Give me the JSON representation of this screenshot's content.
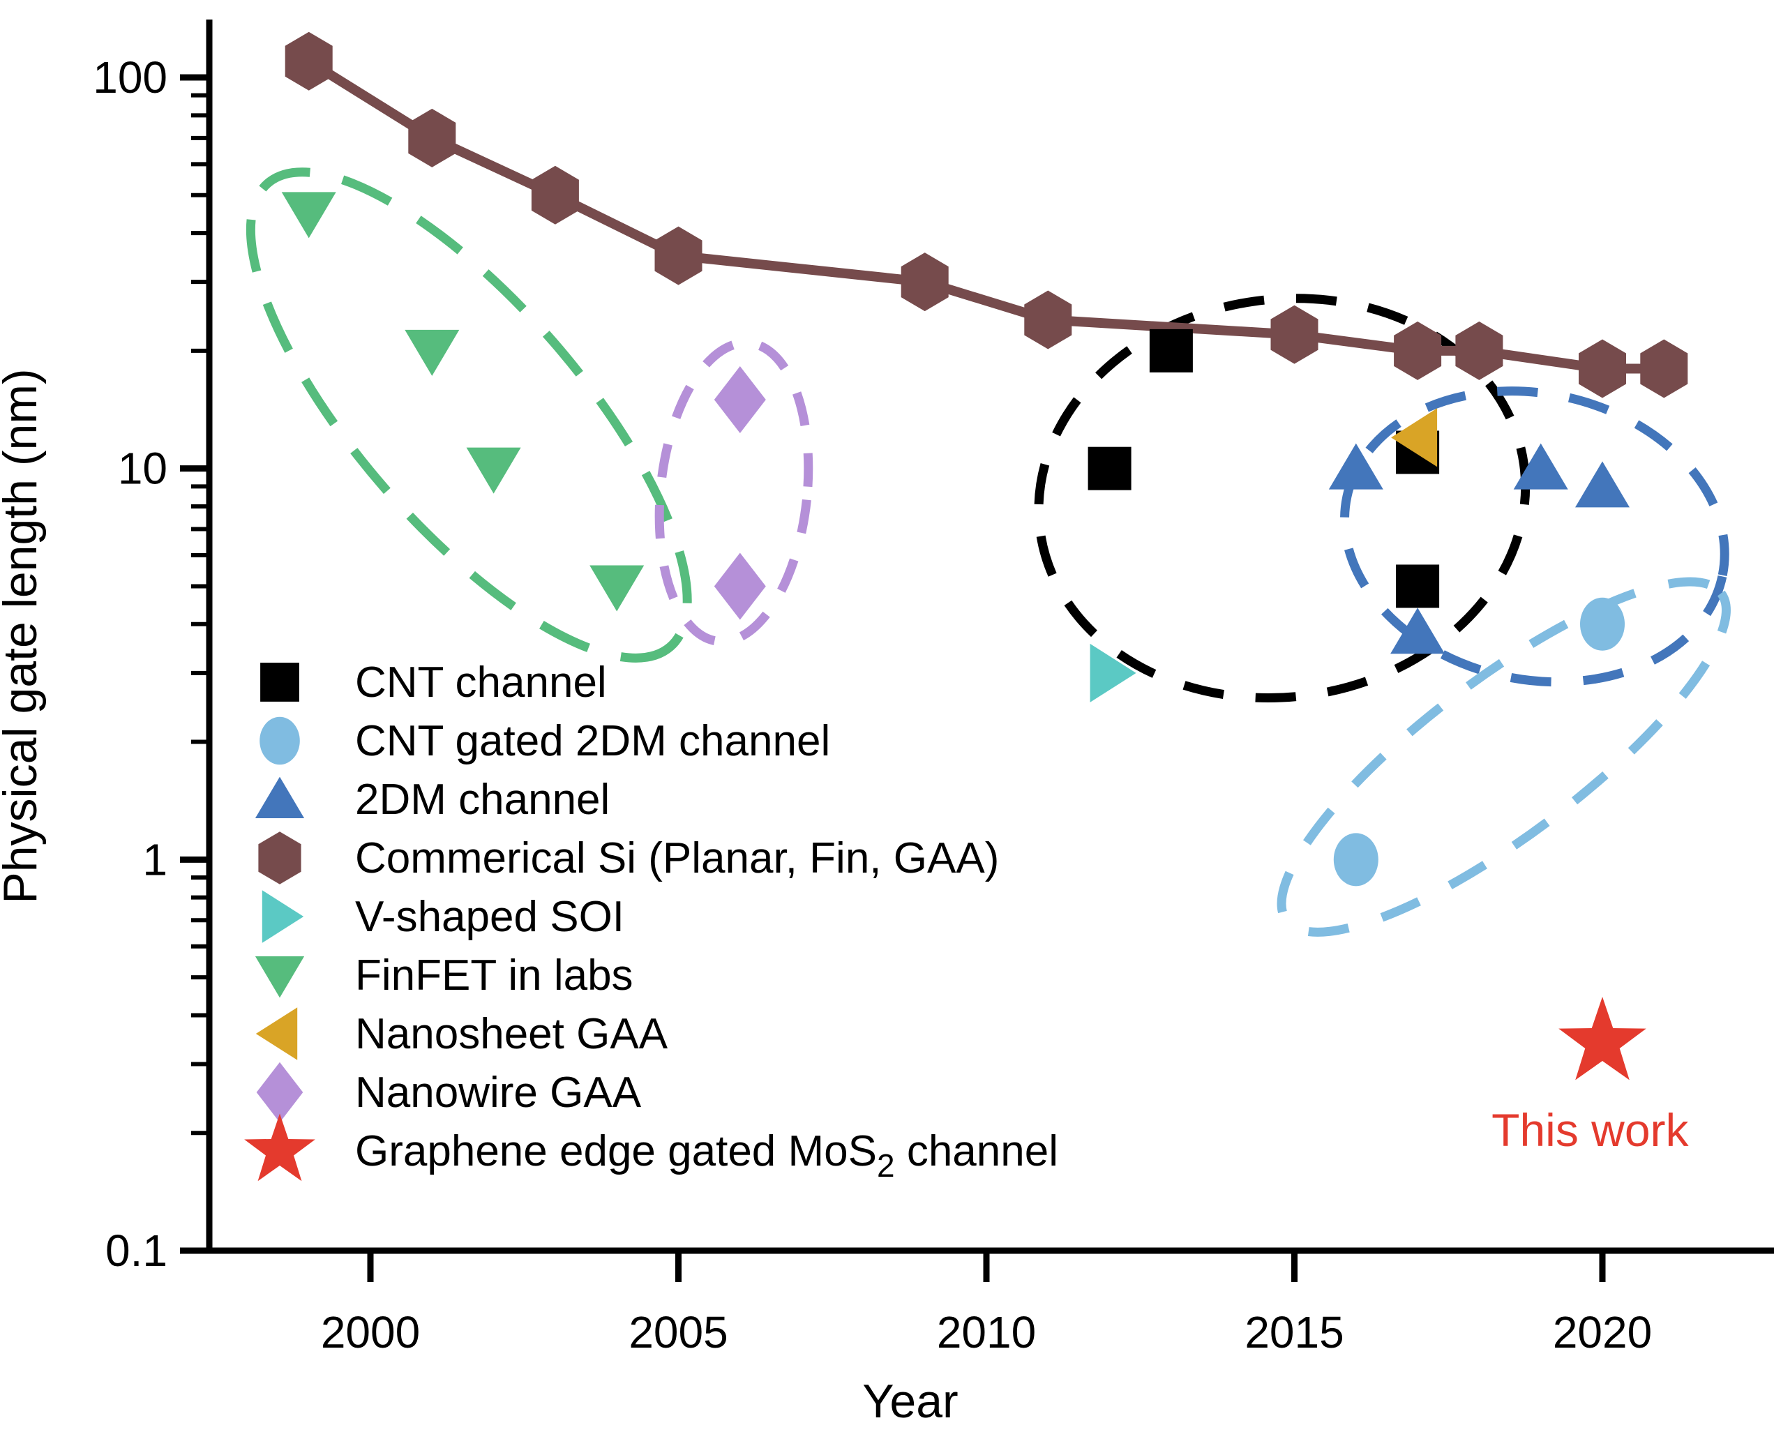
{
  "figure": {
    "ylabel": "Physical gate length (nm)",
    "xlabel": "Year"
  },
  "chart_data": {
    "type": "scatter",
    "title": "",
    "xlabel": "Year",
    "ylabel": "Physical gate length (nm)",
    "y_scale": "log",
    "xlim": [
      1997.4,
      2022.8
    ],
    "ylim": [
      0.1,
      140
    ],
    "x_ticks": [
      2000,
      2005,
      2010,
      2015,
      2020
    ],
    "y_ticks": [
      100,
      10,
      1,
      0.1
    ],
    "grid": false,
    "series": [
      {
        "name": "CNT channel",
        "marker": "square",
        "color": "#000000",
        "points": [
          [
            2012,
            10
          ],
          [
            2013,
            20
          ],
          [
            2017,
            11
          ],
          [
            2017,
            5
          ]
        ]
      },
      {
        "name": "CNT gated 2DM channel",
        "marker": "circle",
        "color": "#80BCE1",
        "points": [
          [
            2016,
            1
          ],
          [
            2020,
            4
          ]
        ]
      },
      {
        "name": "2DM channel",
        "marker": "triangle-up",
        "color": "#4376BB",
        "points": [
          [
            2016,
            10
          ],
          [
            2017,
            3.8
          ],
          [
            2019,
            10
          ],
          [
            2020,
            9
          ]
        ]
      },
      {
        "name": "Commerical Si (Planar, Fin, GAA)",
        "marker": "hexagon",
        "color": "#764B4C",
        "line": true,
        "points": [
          [
            1999,
            110
          ],
          [
            2001,
            70
          ],
          [
            2003,
            50
          ],
          [
            2005,
            35
          ],
          [
            2009,
            30
          ],
          [
            2011,
            24
          ],
          [
            2015,
            22
          ],
          [
            2017,
            20
          ],
          [
            2018,
            20
          ],
          [
            2020,
            18
          ],
          [
            2021,
            18
          ]
        ]
      },
      {
        "name": "V-shaped SOI",
        "marker": "triangle-right",
        "color": "#5BC9C4",
        "points": [
          [
            2012,
            3
          ]
        ]
      },
      {
        "name": "FinFET in labs",
        "marker": "triangle-down",
        "color": "#56BC7D",
        "points": [
          [
            1999,
            45
          ],
          [
            2001,
            20
          ],
          [
            2002,
            10
          ],
          [
            2004,
            5
          ]
        ]
      },
      {
        "name": "Nanosheet GAA",
        "marker": "triangle-left",
        "color": "#D9A426",
        "points": [
          [
            2017,
            12
          ]
        ]
      },
      {
        "name": "Nanowire GAA",
        "marker": "diamond",
        "color": "#B590D8",
        "points": [
          [
            2006,
            15
          ],
          [
            2006,
            5
          ]
        ]
      },
      {
        "name": "Graphene edge gated MoS2 channel",
        "marker": "star",
        "color": "#E43A2D",
        "points": [
          [
            2020,
            0.34
          ]
        ]
      }
    ],
    "group_ellipses": [
      {
        "series": "FinFET in labs",
        "center": [
          2001.6,
          13.7
        ],
        "rx": 440,
        "ry": 160,
        "rot": 49,
        "color": "#56BC7D",
        "dash": [
          75,
          48
        ]
      },
      {
        "series": "Nanowire GAA",
        "center": [
          2005.9,
          8.7
        ],
        "rx": 105,
        "ry": 215,
        "rot": 6,
        "color": "#B590D8",
        "dash": [
          48,
          40
        ]
      },
      {
        "series": "CNT channel",
        "center": [
          2014.8,
          8.4
        ],
        "rx": 350,
        "ry": 285,
        "rot": -8,
        "color": "#000000",
        "dash": [
          58,
          46
        ]
      },
      {
        "series": "2DM channel",
        "center": [
          2018.9,
          6.7
        ],
        "rx": 275,
        "ry": 205,
        "rot": 12,
        "color": "#4376BB",
        "dash": [
          58,
          46
        ]
      },
      {
        "series": "CNT gated 2DM channel",
        "center": [
          2018.4,
          1.83
        ],
        "rx": 390,
        "ry": 112,
        "rot": -37,
        "color": "#80BCE1",
        "dash": [
          58,
          50
        ]
      }
    ],
    "annotation": {
      "text": "This work",
      "color": "#E43A2D",
      "x": 2019.8,
      "y": 0.185
    },
    "legend_position": "lower-left"
  },
  "legend": {
    "items": [
      {
        "label": "CNT channel",
        "marker": "square",
        "color": "#000000"
      },
      {
        "label": "CNT gated 2DM channel",
        "marker": "circle",
        "color": "#80BCE1"
      },
      {
        "label": "2DM channel",
        "marker": "triangle-up",
        "color": "#4376BB"
      },
      {
        "label": "Commerical Si (Planar, Fin, GAA)",
        "marker": "hexagon",
        "color": "#764B4C"
      },
      {
        "label": "V-shaped SOI",
        "marker": "triangle-right",
        "color": "#5BC9C4"
      },
      {
        "label": "FinFET in labs",
        "marker": "triangle-down",
        "color": "#56BC7D"
      },
      {
        "label": "Nanosheet GAA",
        "marker": "triangle-left",
        "color": "#D9A426"
      },
      {
        "label": "Nanowire GAA",
        "marker": "diamond",
        "color": "#B590D8"
      },
      {
        "label": "Graphene edge gated MoS2 channel",
        "marker": "star",
        "color": "#E43A2D",
        "runs": [
          {
            "text": "Graphene edge gated MoS"
          },
          {
            "text": "2",
            "sub": true
          },
          {
            "text": " channel"
          }
        ]
      }
    ]
  },
  "colors": {
    "axis": "#000000",
    "background": "#ffffff"
  }
}
